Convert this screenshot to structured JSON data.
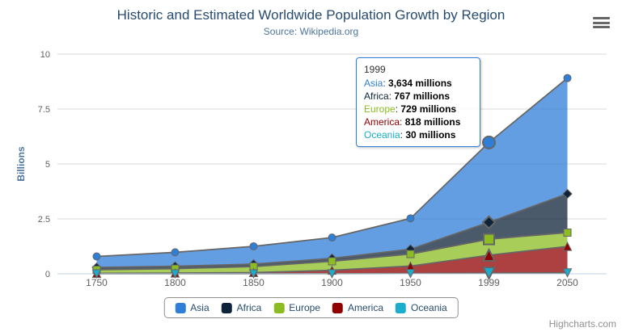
{
  "title": "Historic and Estimated Worldwide Population Growth by Region",
  "subtitle": "Source: Wikipedia.org",
  "credits": "Highcharts.com",
  "export_menu_icon": "hamburger-bars",
  "theme": {
    "title_text": "#274b6d",
    "subtitle_text": "#4d759e",
    "axis_label": "#606060",
    "axis_title_text": "#4d759e",
    "grid_line": "#d8d8d8",
    "axis_line": "#c0d0e0",
    "series_edge_line": "#666666",
    "marker_stroke": "#666666",
    "legend_border": "#909090",
    "legend_text": "#274b6d",
    "credits_text": "#909090",
    "tooltip_border": "#2f7ed8",
    "area_fill_opacity": 0.75
  },
  "chart_data": {
    "type": "area",
    "stacking": "normal",
    "title": "Historic and Estimated Worldwide Population Growth by Region",
    "subtitle": "Source: Wikipedia.org",
    "categories": [
      "1750",
      "1800",
      "1850",
      "1900",
      "1950",
      "1999",
      "2050"
    ],
    "series": [
      {
        "name": "Asia",
        "color": "#2f7ed8",
        "marker": "circle",
        "values": [
          502,
          635,
          809,
          947,
          1402,
          3634,
          5268
        ]
      },
      {
        "name": "Africa",
        "color": "#0d233a",
        "marker": "diamond",
        "values": [
          106,
          107,
          111,
          133,
          221,
          767,
          1766
        ]
      },
      {
        "name": "Europe",
        "color": "#8bbc21",
        "marker": "square",
        "values": [
          163,
          203,
          276,
          408,
          547,
          729,
          628
        ]
      },
      {
        "name": "America",
        "color": "#910000",
        "marker": "triangle",
        "values": [
          18,
          31,
          54,
          156,
          339,
          818,
          1201
        ]
      },
      {
        "name": "Oceania",
        "color": "#1aadce",
        "marker": "triangle-down",
        "values": [
          2,
          2,
          2,
          6,
          13,
          30,
          46
        ]
      }
    ],
    "stack_order_bottom_to_top": [
      "Oceania",
      "America",
      "Europe",
      "Africa",
      "Asia"
    ],
    "unit": "millions",
    "xlabel": "",
    "ylabel": "Billions",
    "yticks": [
      0,
      2.5,
      5,
      7.5,
      10
    ],
    "ytick_labels": [
      "0",
      "2.5",
      "5",
      "7.5",
      "10"
    ],
    "ylim": [
      0,
      10
    ],
    "grid": "horizontal",
    "legend_position": "bottom",
    "hover_index": 5
  },
  "tooltip": {
    "header": "1999",
    "rows": [
      {
        "name": "Asia",
        "color": "#2f7ed8",
        "value": "3,634 millions"
      },
      {
        "name": "Africa",
        "color": "#0d233a",
        "value": "767 millions"
      },
      {
        "name": "Europe",
        "color": "#8bbc21",
        "value": "729 millions"
      },
      {
        "name": "America",
        "color": "#910000",
        "value": "818 millions"
      },
      {
        "name": "Oceania",
        "color": "#1aadce",
        "value": "30 millions"
      }
    ]
  }
}
